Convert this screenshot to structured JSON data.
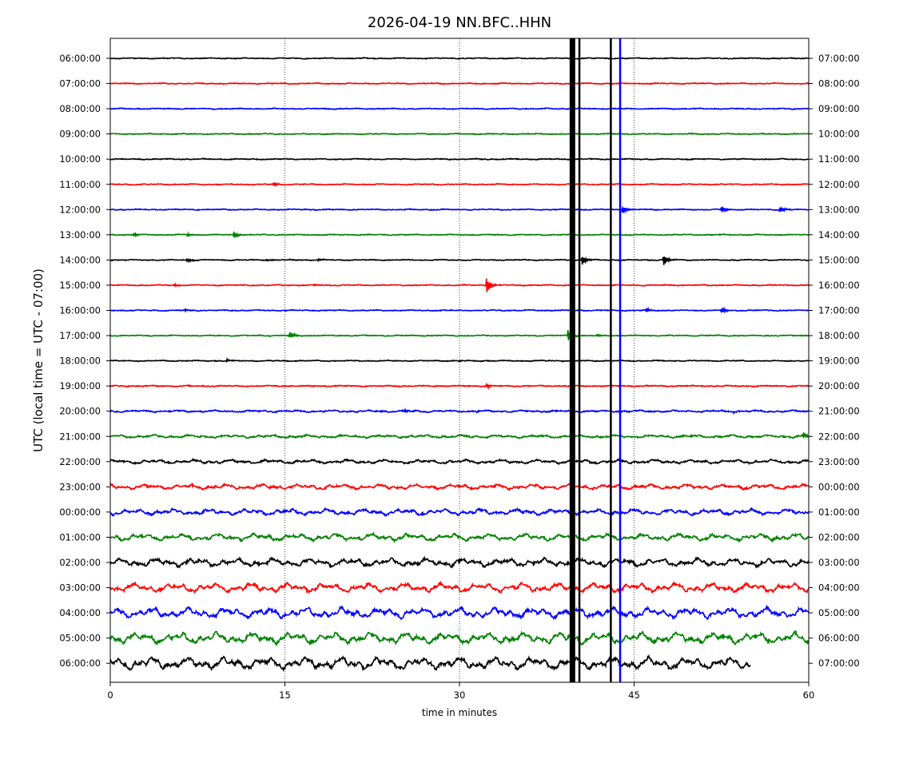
{
  "chart_data": {
    "type": "line",
    "title": "2026-04-19 NN.BFC..HHN",
    "xlabel": "time in minutes",
    "ylabel": "UTC (local time = UTC - 07:00)",
    "xlim": [
      0,
      60
    ],
    "x_ticks": [
      "0",
      "15",
      "30",
      "45",
      "60"
    ],
    "x_tick_values": [
      0,
      15,
      30,
      45,
      60
    ],
    "vertical_gridlines_at_minutes": [
      15,
      30,
      45
    ],
    "grid": "vertical-dotted",
    "color_cycle": [
      "#000000",
      "#ff0000",
      "#0000ff",
      "#008000"
    ],
    "rows_left_labels": [
      "06:00:00",
      "07:00:00",
      "08:00:00",
      "09:00:00",
      "10:00:00",
      "11:00:00",
      "12:00:00",
      "13:00:00",
      "14:00:00",
      "15:00:00",
      "16:00:00",
      "17:00:00",
      "18:00:00",
      "19:00:00",
      "20:00:00",
      "21:00:00",
      "22:00:00",
      "23:00:00",
      "00:00:00",
      "01:00:00",
      "02:00:00",
      "03:00:00",
      "04:00:00",
      "05:00:00",
      "06:00:00"
    ],
    "rows_right_labels": [
      "07:00:00",
      "08:00:00",
      "09:00:00",
      "10:00:00",
      "11:00:00",
      "12:00:00",
      "13:00:00",
      "14:00:00",
      "15:00:00",
      "16:00:00",
      "17:00:00",
      "18:00:00",
      "19:00:00",
      "20:00:00",
      "21:00:00",
      "22:00:00",
      "23:00:00",
      "00:00:00",
      "01:00:00",
      "02:00:00",
      "03:00:00",
      "04:00:00",
      "05:00:00",
      "06:00:00",
      "07:00:00"
    ],
    "last_row_end_minute": 55,
    "events": [
      {
        "row": 5,
        "minute": 14.0,
        "amplitude": 0.9
      },
      {
        "row": 7,
        "minute": 2.0,
        "amplitude": 0.9
      },
      {
        "row": 7,
        "minute": 6.6,
        "amplitude": 0.7
      },
      {
        "row": 7,
        "minute": 10.6,
        "amplitude": 1.5
      },
      {
        "row": 8,
        "minute": 6.6,
        "amplitude": 1.0
      },
      {
        "row": 8,
        "minute": 13.4,
        "amplitude": 0.5
      },
      {
        "row": 8,
        "minute": 17.8,
        "amplitude": 0.5
      },
      {
        "row": 9,
        "minute": 5.5,
        "amplitude": 0.5
      },
      {
        "row": 9,
        "minute": 17.5,
        "amplitude": 0.4
      },
      {
        "row": 9,
        "minute": 32.3,
        "amplitude": 4.0
      },
      {
        "row": 10,
        "minute": 6.4,
        "amplitude": 0.5
      },
      {
        "row": 10,
        "minute": 46.0,
        "amplitude": 1.2
      },
      {
        "row": 10,
        "minute": 52.5,
        "amplitude": 1.5
      },
      {
        "row": 11,
        "minute": 15.4,
        "amplitude": 1.8
      },
      {
        "row": 11,
        "minute": 39.3,
        "amplitude": 3.0
      },
      {
        "row": 11,
        "minute": 41.8,
        "amplitude": 0.6
      },
      {
        "row": 12,
        "minute": 10.0,
        "amplitude": 0.6
      },
      {
        "row": 12,
        "minute": 30.0,
        "amplitude": 0.4
      },
      {
        "row": 13,
        "minute": 32.3,
        "amplitude": 1.0
      },
      {
        "row": 14,
        "minute": 25.3,
        "amplitude": 0.6
      },
      {
        "row": 14,
        "minute": 31.5,
        "amplitude": 0.4
      },
      {
        "row": 14,
        "minute": 53.5,
        "amplitude": 0.4
      },
      {
        "row": 15,
        "minute": 59.5,
        "amplitude": 1.5
      },
      {
        "row": 17,
        "minute": 7.0,
        "amplitude": 0.3
      },
      {
        "row": 21,
        "minute": 43.0,
        "amplitude": 0.7
      },
      {
        "row": 6,
        "minute": 44.0,
        "amplitude": 2.0
      },
      {
        "row": 6,
        "minute": 52.5,
        "amplitude": 1.6
      },
      {
        "row": 6,
        "minute": 57.5,
        "amplitude": 1.5
      },
      {
        "row": 8,
        "minute": 47.5,
        "amplitude": 3.0
      },
      {
        "row": 8,
        "minute": 40.5,
        "amplitude": 2.5
      }
    ],
    "saturated_spikes_minutes": [
      39.7,
      40.3,
      43.0,
      43.8
    ]
  }
}
